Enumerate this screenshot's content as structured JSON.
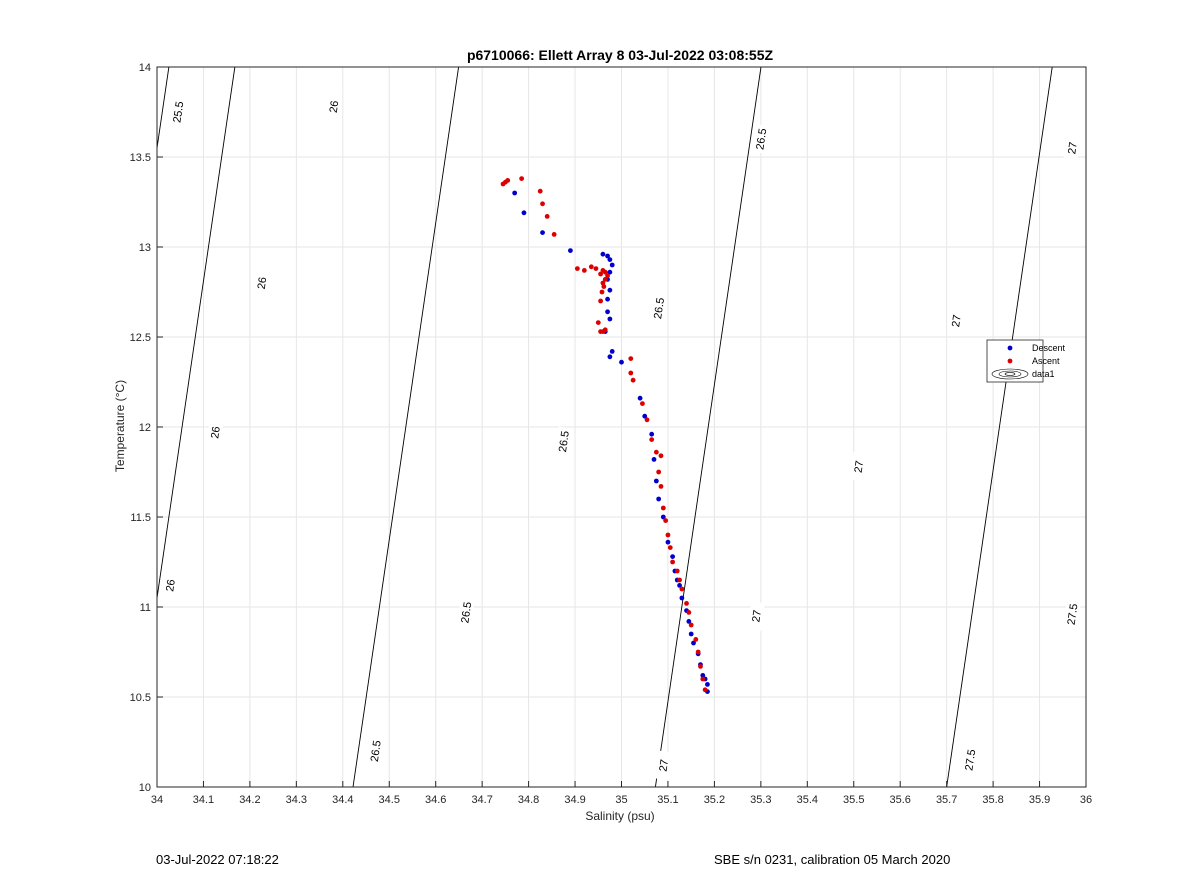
{
  "footer": {
    "left": "03-Jul-2022 07:18:22",
    "right": "SBE s/n 0231, calibration 05 March 2020"
  },
  "chart_data": {
    "type": "scatter",
    "title": "p6710066: Ellett Array 8 03-Jul-2022 03:08:55Z",
    "xlabel": "Salinity (psu)",
    "ylabel": "Temperature (°C)",
    "xlim": [
      34,
      36
    ],
    "ylim": [
      10,
      14
    ],
    "xticks": [
      "34",
      "34.1",
      "34.2",
      "34.3",
      "34.4",
      "34.5",
      "34.6",
      "34.7",
      "34.8",
      "34.9",
      "35",
      "35.1",
      "35.2",
      "35.3",
      "35.4",
      "35.5",
      "35.6",
      "35.7",
      "35.8",
      "35.9",
      "36"
    ],
    "yticks": [
      "10",
      "10.5",
      "11",
      "11.5",
      "12",
      "12.5",
      "13",
      "13.5",
      "14"
    ],
    "grid": true,
    "legend_position": "right",
    "colors": {
      "descent": "#0000cc",
      "ascent": "#dd0000",
      "contour": "#000000",
      "grid": "#e6e6e6"
    },
    "contour_labels": [
      {
        "text": "25.5",
        "s": 34.045,
        "t": 13.75
      },
      {
        "text": "26",
        "s": 34.38,
        "t": 13.78
      },
      {
        "text": "26",
        "s": 34.225,
        "t": 12.8
      },
      {
        "text": "26",
        "s": 34.125,
        "t": 11.97
      },
      {
        "text": "26",
        "s": 34.028,
        "t": 11.12
      },
      {
        "text": "26.5",
        "s": 35.3,
        "t": 13.6
      },
      {
        "text": "26.5",
        "s": 35.08,
        "t": 12.66
      },
      {
        "text": "26.5",
        "s": 34.875,
        "t": 11.92
      },
      {
        "text": "26.5",
        "s": 34.665,
        "t": 10.97
      },
      {
        "text": "26.5",
        "s": 34.47,
        "t": 10.2
      },
      {
        "text": "27",
        "s": 35.97,
        "t": 13.55
      },
      {
        "text": "27",
        "s": 35.72,
        "t": 12.59
      },
      {
        "text": "27",
        "s": 35.51,
        "t": 11.78
      },
      {
        "text": "27",
        "s": 35.29,
        "t": 10.95
      },
      {
        "text": "27",
        "s": 35.09,
        "t": 10.12
      },
      {
        "text": "27.5",
        "s": 35.97,
        "t": 10.96
      },
      {
        "text": "27.5",
        "s": 35.75,
        "t": 10.15
      }
    ],
    "series": [
      {
        "name": "Descent",
        "x": [
          34.77,
          34.79,
          34.83,
          34.89,
          34.96,
          34.97,
          34.975,
          34.98,
          34.975,
          34.97,
          34.975,
          34.97,
          34.97,
          34.975,
          34.965,
          34.98,
          34.975,
          35.0,
          35.04,
          35.05,
          35.065,
          35.07,
          35.075,
          35.08,
          35.09,
          35.1,
          35.11,
          35.115,
          35.12,
          35.125,
          35.13,
          35.14,
          35.145,
          35.15,
          35.155,
          35.165,
          35.17,
          35.175,
          35.18,
          35.185,
          35.185
        ],
        "y": [
          13.3,
          13.19,
          13.08,
          12.98,
          12.96,
          12.95,
          12.93,
          12.9,
          12.86,
          12.82,
          12.76,
          12.71,
          12.64,
          12.6,
          12.53,
          12.42,
          12.39,
          12.36,
          12.16,
          12.06,
          11.96,
          11.82,
          11.7,
          11.6,
          11.5,
          11.36,
          11.28,
          11.2,
          11.15,
          11.12,
          11.05,
          10.98,
          10.92,
          10.85,
          10.8,
          10.74,
          10.68,
          10.62,
          10.6,
          10.57,
          10.53
        ]
      },
      {
        "name": "Ascent",
        "x": [
          34.745,
          34.755,
          34.75,
          34.785,
          34.825,
          34.83,
          34.84,
          34.855,
          34.905,
          34.92,
          34.935,
          34.945,
          34.955,
          34.96,
          34.965,
          34.97,
          34.965,
          34.96,
          34.962,
          34.958,
          34.955,
          34.95,
          34.955,
          34.96,
          34.965,
          35.02,
          35.02,
          35.025,
          35.045,
          35.055,
          35.065,
          35.075,
          35.085,
          35.08,
          35.085,
          35.09,
          35.095,
          35.1,
          35.105,
          35.11,
          35.12,
          35.125,
          35.13,
          35.14,
          35.145,
          35.15,
          35.16,
          35.165,
          35.17,
          35.175,
          35.18
        ],
        "y": [
          13.35,
          13.37,
          13.36,
          13.38,
          13.31,
          13.24,
          13.17,
          13.07,
          12.88,
          12.87,
          12.89,
          12.88,
          12.85,
          12.87,
          12.86,
          12.84,
          12.82,
          12.8,
          12.78,
          12.75,
          12.7,
          12.58,
          12.53,
          12.53,
          12.54,
          12.38,
          12.3,
          12.26,
          12.13,
          12.04,
          11.93,
          11.86,
          11.84,
          11.75,
          11.67,
          11.55,
          11.48,
          11.4,
          11.33,
          11.25,
          11.2,
          11.15,
          11.1,
          11.02,
          10.97,
          10.9,
          10.82,
          10.75,
          10.67,
          10.6,
          10.54
        ]
      },
      {
        "name": "data1",
        "type": "contour",
        "levels": [
          25.5,
          26,
          26.5,
          27,
          27.5
        ]
      }
    ]
  }
}
